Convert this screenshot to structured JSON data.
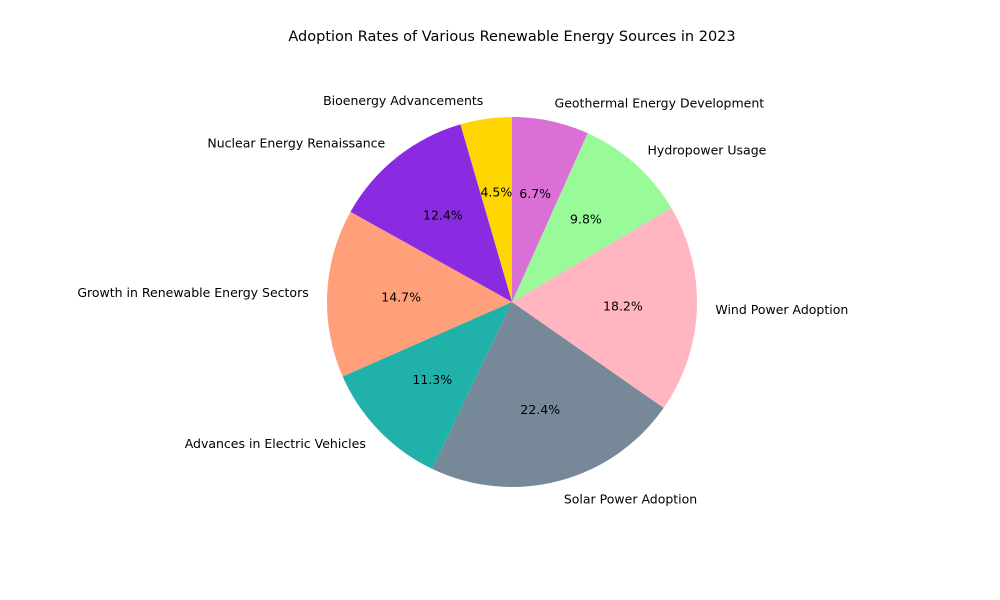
{
  "chart_data": {
    "type": "pie",
    "title": "Adoption Rates of Various Renewable Energy Sources in 2023",
    "start_angle_deg": 90,
    "direction": "counterclockwise",
    "slices": [
      {
        "label": "Bioenergy Advancements",
        "value": 4.5,
        "pct_label": "4.5%",
        "color": "#FFD700"
      },
      {
        "label": "Nuclear Energy Renaissance",
        "value": 12.4,
        "pct_label": "12.4%",
        "color": "#8A2BE2"
      },
      {
        "label": "Growth in Renewable Energy Sectors",
        "value": 14.7,
        "pct_label": "14.7%",
        "color": "#FFA07A"
      },
      {
        "label": "Advances in Electric Vehicles",
        "value": 11.3,
        "pct_label": "11.3%",
        "color": "#20B2AA"
      },
      {
        "label": "Solar Power Adoption",
        "value": 22.4,
        "pct_label": "22.4%",
        "color": "#778899"
      },
      {
        "label": "Wind Power Adoption",
        "value": 18.2,
        "pct_label": "18.2%",
        "color": "#FFB6C1"
      },
      {
        "label": "Hydropower Usage",
        "value": 9.8,
        "pct_label": "9.8%",
        "color": "#98FB98"
      },
      {
        "label": "Geothermal Energy Development",
        "value": 6.7,
        "pct_label": "6.7%",
        "color": "#DA70D6"
      }
    ]
  }
}
